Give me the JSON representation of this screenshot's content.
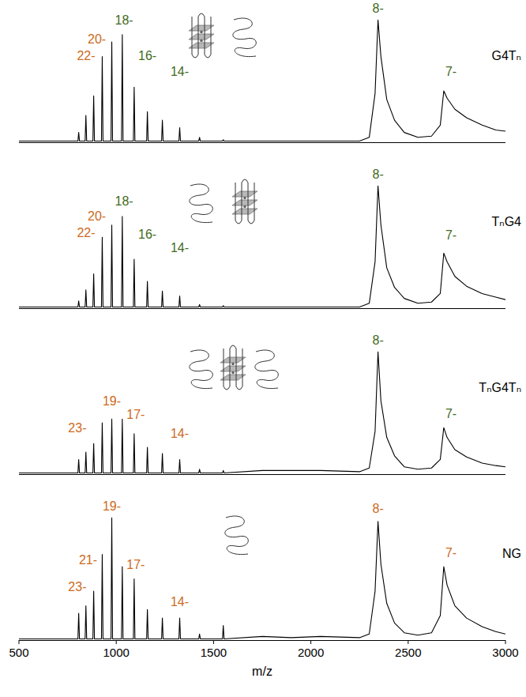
{
  "chart_data": [
    {
      "type": "line",
      "title": "G4Tₙ",
      "color": "#000000",
      "xlim": [
        500,
        3000
      ],
      "ylim": [
        0,
        115
      ],
      "tick_labels": false,
      "x": [
        500,
        803,
        807,
        811,
        840,
        844,
        848,
        880,
        884,
        888,
        924,
        928,
        932,
        973,
        977,
        981,
        1027,
        1031,
        1035,
        1088,
        1092,
        1096,
        1156,
        1160,
        1164,
        1233,
        1237,
        1241,
        1322,
        1326,
        1330,
        1424,
        1428,
        1432,
        1546,
        1550,
        1554,
        1750,
        1900,
        2050,
        2250,
        2300,
        2330,
        2345,
        2360,
        2390,
        2430,
        2480,
        2550,
        2620,
        2665,
        2683,
        2700,
        2740,
        2800,
        2880,
        2950,
        3000
      ],
      "values": [
        1,
        1,
        8,
        1,
        1,
        22,
        1,
        1,
        38,
        1,
        1,
        70,
        1,
        1,
        82,
        1,
        1,
        88,
        1,
        1,
        45,
        1,
        1,
        25,
        1,
        1,
        18,
        1,
        1,
        12,
        1,
        1,
        4,
        1,
        1,
        2,
        1,
        1,
        1,
        1,
        1,
        4,
        40,
        100,
        70,
        35,
        18,
        8,
        4,
        5,
        14,
        42,
        36,
        27,
        20,
        14,
        10,
        9
      ],
      "annotations": [
        {
          "text": "22-",
          "x": 845,
          "y": 67,
          "color": "#cc6a1c"
        },
        {
          "text": "20-",
          "x": 900,
          "y": 81,
          "color": "#cc6a1c"
        },
        {
          "text": "18-",
          "x": 1040,
          "y": 96,
          "color": "#3f6b21"
        },
        {
          "text": "16-",
          "x": 1160,
          "y": 67,
          "color": "#3f6b21"
        },
        {
          "text": "14-",
          "x": 1326,
          "y": 54,
          "color": "#3f6b21"
        },
        {
          "text": "8-",
          "x": 2345,
          "y": 106,
          "color": "#3f6b21"
        },
        {
          "text": "7-",
          "x": 2720,
          "y": 54,
          "color": "#3f6b21"
        }
      ]
    },
    {
      "type": "line",
      "title": "TₙG4",
      "color": "#000000",
      "xlim": [
        500,
        3000
      ],
      "ylim": [
        0,
        115
      ],
      "tick_labels": false,
      "x": [
        500,
        803,
        807,
        811,
        840,
        844,
        848,
        880,
        884,
        888,
        924,
        928,
        932,
        973,
        977,
        981,
        1027,
        1031,
        1035,
        1088,
        1092,
        1096,
        1156,
        1160,
        1164,
        1233,
        1237,
        1241,
        1322,
        1326,
        1330,
        1424,
        1428,
        1432,
        1546,
        1550,
        1554,
        1750,
        1900,
        2050,
        2250,
        2300,
        2330,
        2345,
        2360,
        2390,
        2430,
        2480,
        2550,
        2620,
        2665,
        2683,
        2700,
        2740,
        2800,
        2880,
        2950,
        3000
      ],
      "values": [
        1,
        1,
        6,
        1,
        1,
        15,
        1,
        1,
        28,
        1,
        1,
        58,
        1,
        1,
        68,
        1,
        1,
        75,
        1,
        1,
        40,
        1,
        1,
        22,
        1,
        1,
        14,
        1,
        1,
        10,
        1,
        1,
        3,
        1,
        1,
        2,
        1,
        1,
        1,
        1,
        1,
        4,
        38,
        100,
        68,
        33,
        17,
        8,
        4,
        5,
        12,
        45,
        38,
        26,
        18,
        12,
        9,
        7
      ],
      "annotations": [
        {
          "text": "22-",
          "x": 845,
          "y": 58,
          "color": "#cc6a1c"
        },
        {
          "text": "20-",
          "x": 900,
          "y": 72,
          "color": "#cc6a1c"
        },
        {
          "text": "18-",
          "x": 1040,
          "y": 84,
          "color": "#3f6b21"
        },
        {
          "text": "16-",
          "x": 1160,
          "y": 57,
          "color": "#3f6b21"
        },
        {
          "text": "14-",
          "x": 1326,
          "y": 46,
          "color": "#3f6b21"
        },
        {
          "text": "8-",
          "x": 2345,
          "y": 106,
          "color": "#3f6b21"
        },
        {
          "text": "7-",
          "x": 2720,
          "y": 56,
          "color": "#3f6b21"
        }
      ]
    },
    {
      "type": "line",
      "title": "TₙG4Tₙ",
      "color": "#000000",
      "xlim": [
        500,
        3000
      ],
      "ylim": [
        0,
        115
      ],
      "tick_labels": false,
      "x": [
        500,
        803,
        807,
        811,
        840,
        844,
        848,
        880,
        884,
        888,
        924,
        928,
        932,
        973,
        977,
        981,
        1027,
        1031,
        1035,
        1088,
        1092,
        1096,
        1156,
        1160,
        1164,
        1233,
        1237,
        1241,
        1322,
        1326,
        1330,
        1424,
        1428,
        1432,
        1546,
        1550,
        1554,
        1750,
        1900,
        2050,
        2250,
        2300,
        2330,
        2345,
        2360,
        2390,
        2430,
        2480,
        2550,
        2620,
        2665,
        2683,
        2700,
        2740,
        2800,
        2880,
        2950,
        3000
      ],
      "values": [
        1,
        1,
        12,
        1,
        1,
        18,
        1,
        1,
        25,
        1,
        1,
        42,
        1,
        1,
        45,
        1,
        1,
        45,
        1,
        1,
        33,
        1,
        1,
        22,
        1,
        1,
        17,
        1,
        1,
        12,
        1,
        1,
        4,
        1,
        1,
        3,
        1,
        3,
        3,
        3,
        2,
        5,
        35,
        100,
        60,
        30,
        15,
        6,
        4,
        5,
        12,
        38,
        30,
        20,
        14,
        9,
        7,
        6
      ],
      "annotations": [
        {
          "text": "23-",
          "x": 800,
          "y": 34,
          "color": "#cc6a1c"
        },
        {
          "text": "19-",
          "x": 977,
          "y": 56,
          "color": "#cc6a1c"
        },
        {
          "text": "17-",
          "x": 1100,
          "y": 45,
          "color": "#cc6a1c"
        },
        {
          "text": "14-",
          "x": 1326,
          "y": 30,
          "color": "#cc6a1c"
        },
        {
          "text": "8-",
          "x": 2345,
          "y": 106,
          "color": "#3f6b21"
        },
        {
          "text": "7-",
          "x": 2720,
          "y": 46,
          "color": "#3f6b21"
        }
      ]
    },
    {
      "type": "line",
      "title": "NG",
      "color": "#000000",
      "xlim": [
        500,
        3000
      ],
      "ylim": [
        0,
        115
      ],
      "tick_labels": "x",
      "xticks": [
        500,
        1000,
        1500,
        2000,
        2500,
        3000
      ],
      "xlabel": "m/z",
      "x": [
        500,
        803,
        807,
        811,
        840,
        844,
        848,
        880,
        884,
        888,
        924,
        928,
        932,
        973,
        977,
        981,
        1027,
        1031,
        1035,
        1088,
        1092,
        1096,
        1156,
        1160,
        1164,
        1233,
        1237,
        1241,
        1322,
        1326,
        1330,
        1424,
        1428,
        1432,
        1546,
        1550,
        1554,
        1750,
        1900,
        2050,
        2250,
        2300,
        2330,
        2345,
        2360,
        2390,
        2430,
        2480,
        2550,
        2620,
        2665,
        2683,
        2700,
        2740,
        2800,
        2880,
        2950,
        3000
      ],
      "values": [
        1,
        1,
        22,
        1,
        1,
        28,
        1,
        1,
        40,
        1,
        1,
        70,
        1,
        1,
        100,
        1,
        1,
        60,
        1,
        1,
        50,
        1,
        1,
        25,
        1,
        1,
        18,
        1,
        1,
        18,
        1,
        1,
        5,
        1,
        1,
        12,
        1,
        3,
        2,
        3,
        2,
        5,
        40,
        97,
        62,
        30,
        14,
        6,
        4,
        6,
        20,
        60,
        45,
        28,
        18,
        11,
        7,
        5
      ],
      "annotations": [
        {
          "text": "23-",
          "x": 800,
          "y": 40,
          "color": "#cc6a1c"
        },
        {
          "text": "21-",
          "x": 855,
          "y": 62,
          "color": "#cc6a1c"
        },
        {
          "text": "19-",
          "x": 977,
          "y": 106,
          "color": "#cc6a1c"
        },
        {
          "text": "17-",
          "x": 1100,
          "y": 58,
          "color": "#cc6a1c"
        },
        {
          "text": "14-",
          "x": 1326,
          "y": 28,
          "color": "#cc6a1c"
        },
        {
          "text": "8-",
          "x": 2345,
          "y": 104,
          "color": "#cc6a1c"
        },
        {
          "text": "7-",
          "x": 2720,
          "y": 68,
          "color": "#cc6a1c"
        }
      ]
    }
  ]
}
